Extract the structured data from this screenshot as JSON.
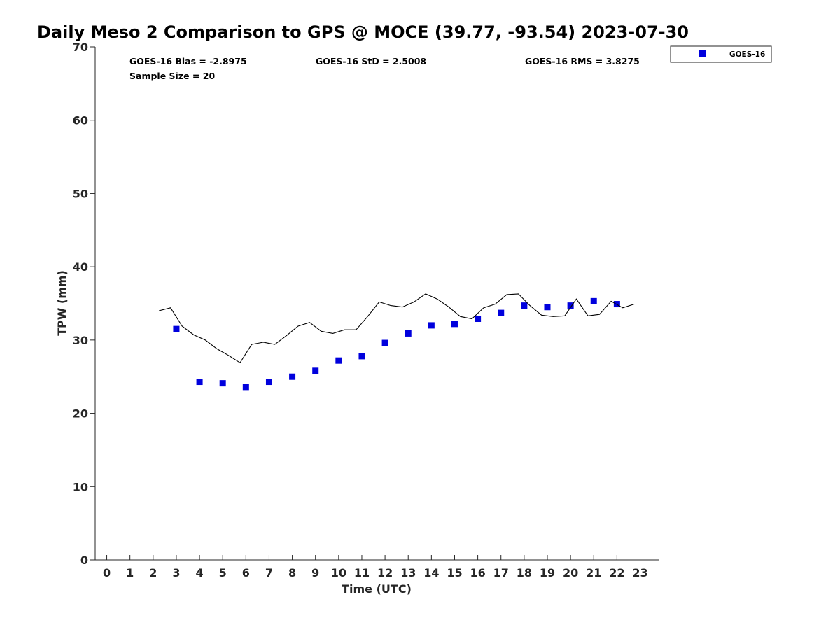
{
  "chart_data": {
    "type": "scatter",
    "title": "Daily Meso 2 Comparison to GPS @ MOCE (39.77, -93.54) 2023-07-30",
    "xlabel": "Time (UTC)",
    "ylabel": "TPW (mm)",
    "xlim": [
      -0.5,
      23.8
    ],
    "ylim": [
      0,
      70
    ],
    "xticks": [
      "0",
      "1",
      "2",
      "3",
      "4",
      "5",
      "6",
      "7",
      "8",
      "9",
      "10",
      "11",
      "12",
      "13",
      "14",
      "15",
      "16",
      "17",
      "18",
      "19",
      "20",
      "21",
      "22",
      "23"
    ],
    "yticks": [
      "0",
      "10",
      "20",
      "30",
      "40",
      "50",
      "60",
      "70"
    ],
    "grid": false,
    "legend_position": "top-right",
    "stats": {
      "bias": "GOES-16 Bias = -2.8975",
      "std": "GOES-16 StD = 2.5008",
      "rms": "GOES-16 RMS = 3.8275",
      "sample": "Sample Size = 20"
    },
    "series": [
      {
        "name": "GOES-16",
        "kind": "markers",
        "color": "#0000dd",
        "x": [
          3,
          4,
          5,
          6,
          7,
          8,
          9,
          10,
          11,
          12,
          13,
          14,
          15,
          16,
          17,
          18,
          19,
          20,
          21,
          22
        ],
        "y": [
          31.5,
          24.3,
          24.1,
          23.6,
          24.3,
          25.0,
          25.8,
          27.2,
          27.8,
          29.6,
          30.9,
          32.0,
          32.2,
          32.9,
          33.7,
          34.7,
          34.5,
          34.7,
          35.3,
          34.9
        ]
      },
      {
        "kind": "line",
        "color": "#000000",
        "x": [
          2.25,
          2.75,
          3.25,
          3.75,
          4.25,
          4.75,
          5.25,
          5.75,
          6.25,
          6.75,
          7.25,
          7.75,
          8.25,
          8.75,
          9.25,
          9.75,
          10.25,
          10.75,
          11.25,
          11.75,
          12.25,
          12.75,
          13.25,
          13.75,
          14.25,
          14.75,
          15.25,
          15.75,
          16.25,
          16.75,
          17.25,
          17.75,
          18.25,
          18.75,
          19.25,
          19.75,
          20.25,
          20.75,
          21.25,
          21.75,
          22.25,
          22.75
        ],
        "y": [
          34.0,
          34.4,
          31.9,
          30.7,
          30.0,
          28.8,
          27.9,
          26.9,
          29.4,
          29.7,
          29.4,
          30.6,
          31.9,
          32.4,
          31.2,
          30.9,
          31.4,
          31.4,
          33.2,
          35.2,
          34.7,
          34.5,
          35.2,
          36.3,
          35.6,
          34.5,
          33.2,
          32.9,
          34.4,
          34.9,
          36.2,
          36.3,
          34.7,
          33.4,
          33.2,
          33.3,
          35.6,
          33.3,
          33.5,
          35.3,
          34.4,
          34.9
        ]
      }
    ]
  }
}
